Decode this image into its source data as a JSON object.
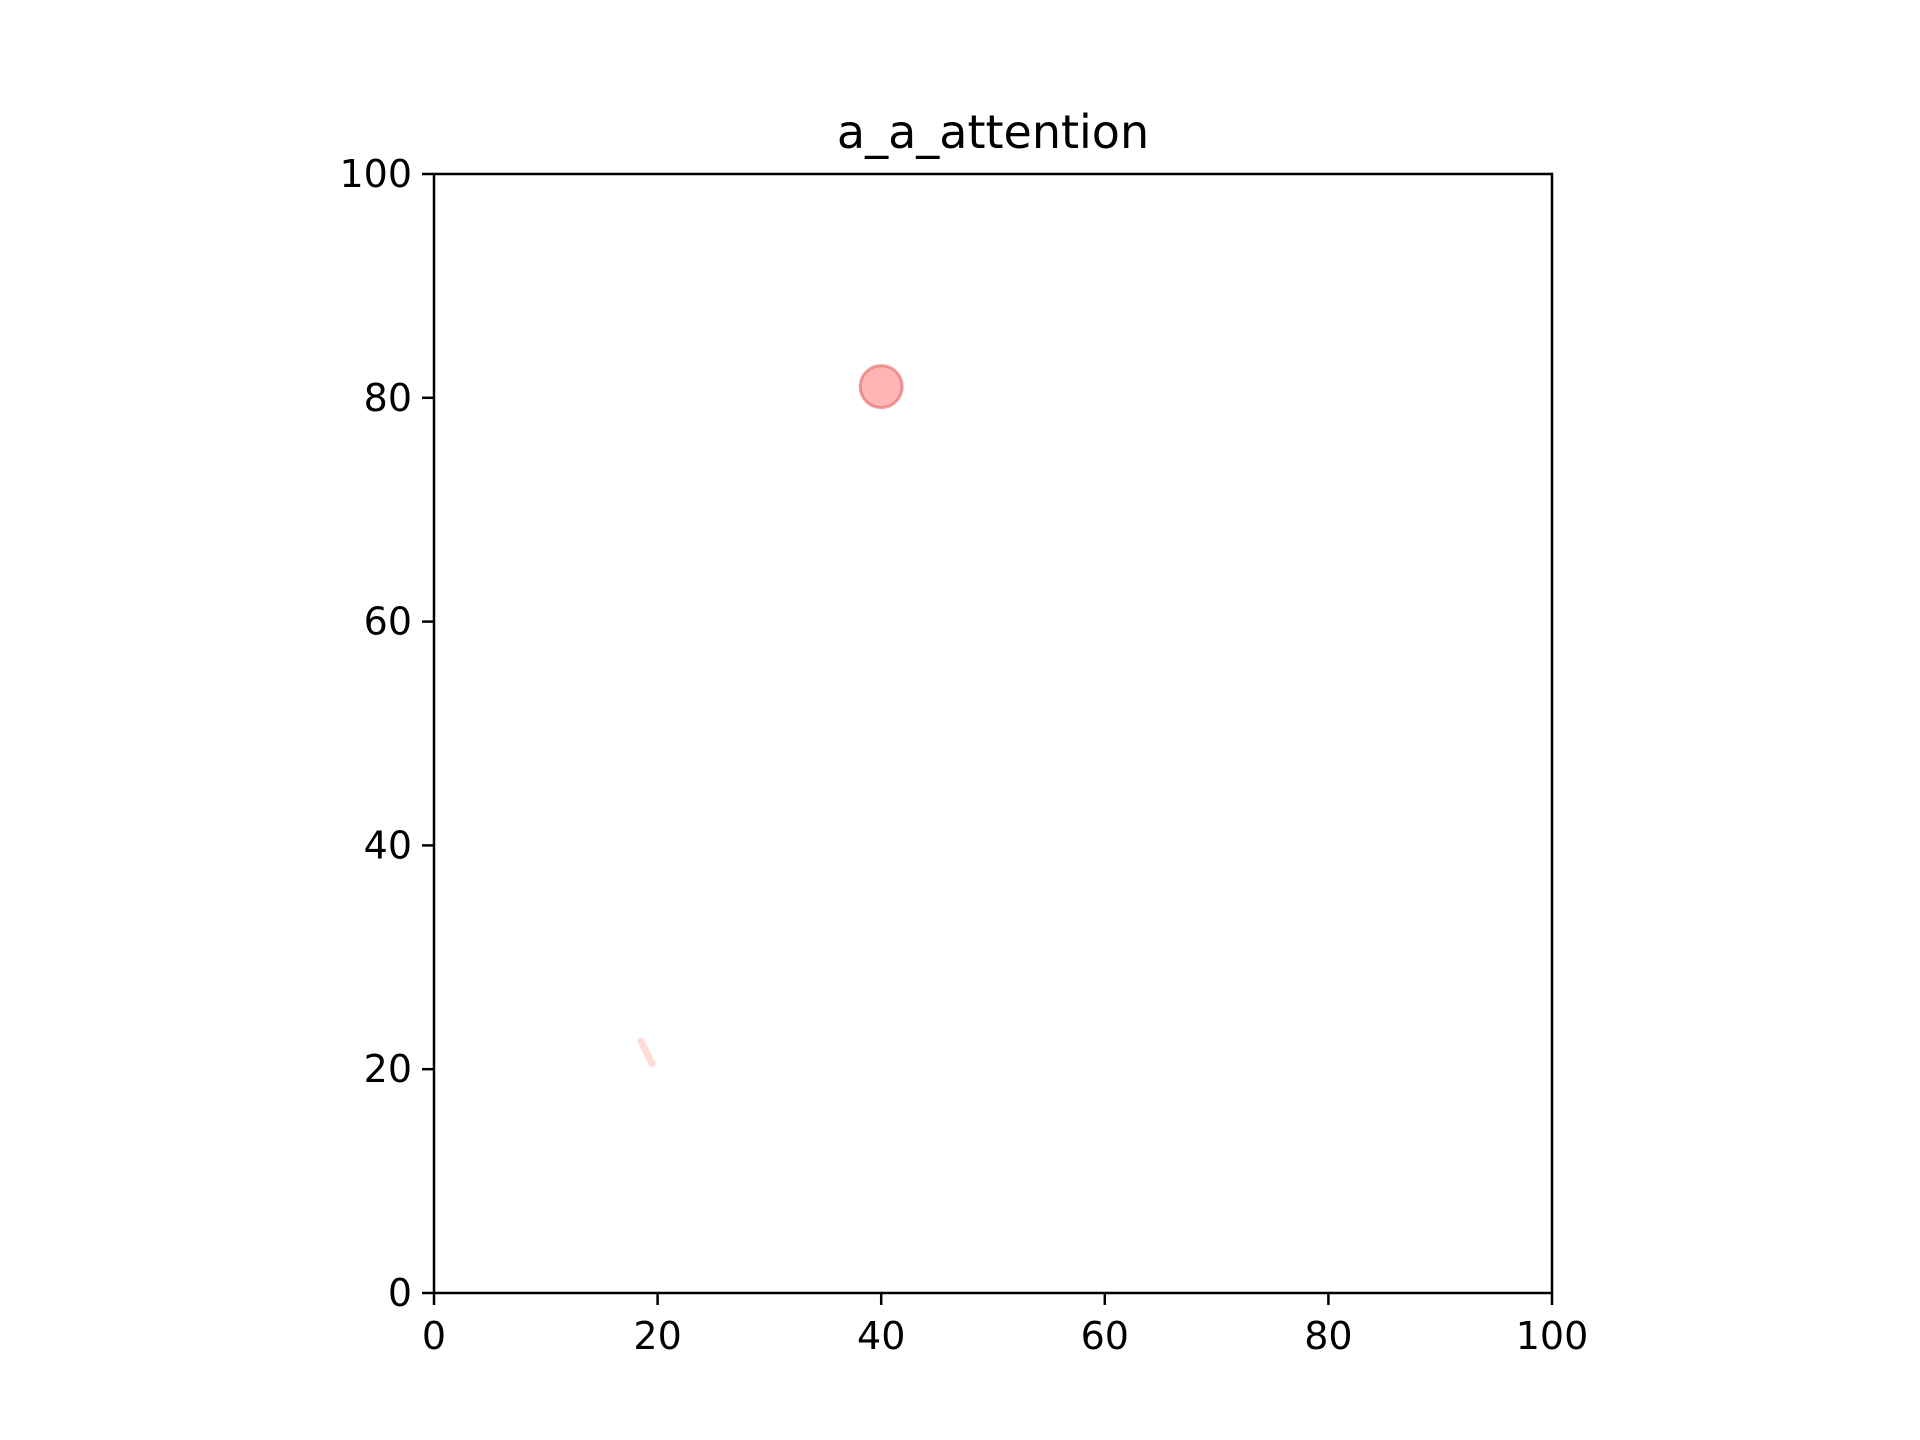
{
  "chart_data": {
    "type": "scatter",
    "title": "a_a_attention",
    "xlabel": "",
    "ylabel": "",
    "xlim": [
      0,
      100
    ],
    "ylim": [
      0,
      100
    ],
    "xticks": [
      0,
      20,
      40,
      60,
      80,
      100
    ],
    "yticks": [
      0,
      20,
      40,
      60,
      80,
      100
    ],
    "grid": false,
    "colors": {
      "point_fill": "#ff6b6b",
      "point_stroke": "#e05a5a",
      "trace": "#ffd0c8",
      "axis": "#000000",
      "background": "#ffffff"
    },
    "points": [
      {
        "x": 40,
        "y": 81
      }
    ],
    "trace": [
      {
        "x": 18.5,
        "y": 22.5
      },
      {
        "x": 19.5,
        "y": 20.5
      }
    ]
  }
}
